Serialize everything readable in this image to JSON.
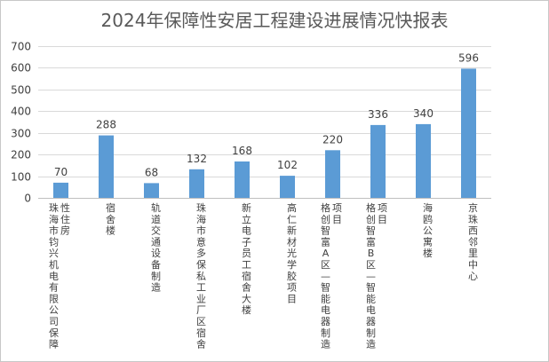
{
  "chart_data": {
    "type": "bar",
    "title": "2024年保障性安居工程建设进展情况快报表",
    "xlabel": "",
    "ylabel": "",
    "ylim": [
      0,
      700
    ],
    "yticks": [
      0,
      100,
      200,
      300,
      400,
      500,
      600,
      700
    ],
    "grid": true,
    "legend": "none",
    "bar_color": "#5b9bd5",
    "categories": [
      "珠海市钧兴机电有限公司保障性住房",
      "宿舍楼",
      "轨道交通设备制造",
      "珠海市意多保私工业厂区宿舍",
      "新立电子员工宿舍大楼",
      "高仁新材光学胶项目",
      "格创智富A区—智能电器制造项目",
      "格创智富B区—智能电器制造项目",
      "海鸥公寓楼",
      "京珠西邻里中心"
    ],
    "values": [
      70,
      288,
      68,
      132,
      168,
      102,
      220,
      336,
      340,
      596
    ],
    "data_labels": [
      "70",
      "288",
      "68",
      "132",
      "168",
      "102",
      "220",
      "336",
      "340",
      "596"
    ]
  }
}
